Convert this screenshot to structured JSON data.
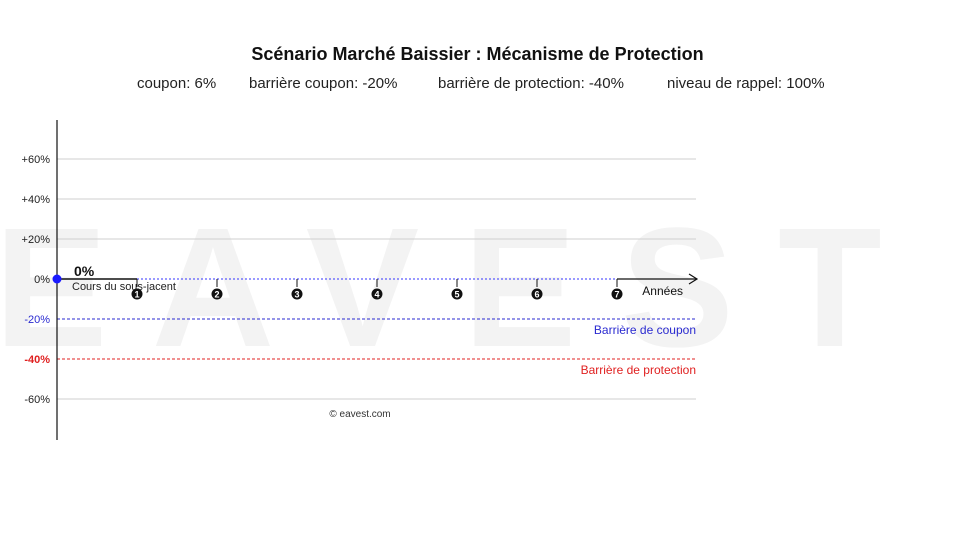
{
  "header": {
    "title": "Scénario Marché Baissier : Mécanisme de Protection",
    "params": [
      "coupon: 6%",
      "barrière coupon: -20%",
      "barrière de protection: -40%",
      "niveau de rappel: 100%"
    ]
  },
  "watermark": {
    "text": "EAVEST",
    "color": "#f3f3f3"
  },
  "chart_data": {
    "type": "line",
    "ylim": [
      -80,
      80
    ],
    "xlim": [
      0,
      8
    ],
    "y_ticks": [
      {
        "value": 60,
        "label": "+60%"
      },
      {
        "value": 40,
        "label": "+40%"
      },
      {
        "value": 20,
        "label": "+20%"
      },
      {
        "value": 0,
        "label": "0%"
      },
      {
        "value": -20,
        "label": "-20%"
      },
      {
        "value": -40,
        "label": "-40%"
      },
      {
        "value": -60,
        "label": "-60%"
      }
    ],
    "x_ticks": [
      {
        "value": 1,
        "label": "1"
      },
      {
        "value": 2,
        "label": "2"
      },
      {
        "value": 3,
        "label": "3"
      },
      {
        "value": 4,
        "label": "4"
      },
      {
        "value": 5,
        "label": "5"
      },
      {
        "value": 6,
        "label": "6"
      },
      {
        "value": 7,
        "label": "7"
      }
    ],
    "xlabel": "Années",
    "grid": true,
    "series": [
      {
        "name": "Cours du sous-jacent",
        "points": [
          {
            "x": 0,
            "y": 0
          },
          {
            "x": 1,
            "y": 0
          }
        ],
        "color": "#111111"
      }
    ],
    "start_point": {
      "x": 0,
      "y": 0,
      "label": "0%",
      "color": "#1a1aff"
    },
    "reference_lines": [
      {
        "name": "reference",
        "y": 0,
        "color": "#3333ff",
        "label": ""
      },
      {
        "name": "coupon-barrier",
        "y": -20,
        "color": "#2a2ad0",
        "label": "Barrière de coupon"
      },
      {
        "name": "protection-barrier",
        "y": -40,
        "color": "#e02020",
        "label": "Barrière de protection"
      }
    ],
    "tick_label_colors": {
      "-20": "#2a2ad0",
      "-40": "#e02020"
    },
    "credit": "© eavest.com"
  }
}
